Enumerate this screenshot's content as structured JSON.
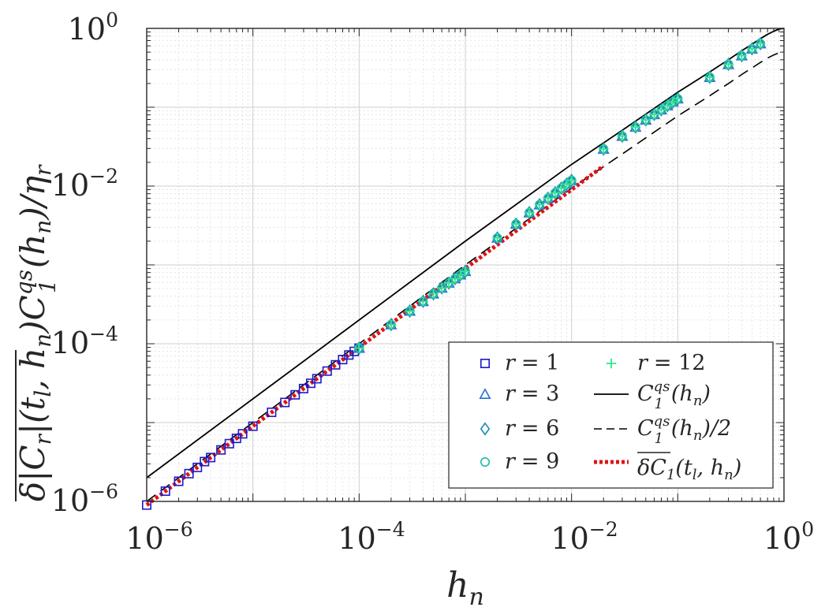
{
  "chart_data": {
    "type": "scatter",
    "xscale": "log",
    "yscale": "log",
    "xlim": [
      1e-06,
      1
    ],
    "ylim": [
      1e-06,
      1
    ],
    "grid": true,
    "xlabel": {
      "base": "h",
      "sub": "n"
    },
    "ylabel": "δ|C_r|(t_l, h_n) C_1^{qs}(h_n) / η_r (overlined)",
    "xticks": [
      {
        "value": 1e-06,
        "base": "10",
        "exp": "−6"
      },
      {
        "value": 0.0001,
        "base": "10",
        "exp": "−4"
      },
      {
        "value": 0.01,
        "base": "10",
        "exp": "−2"
      },
      {
        "value": 1,
        "base": "10",
        "exp": "0"
      }
    ],
    "yticks": [
      {
        "value": 1e-06,
        "base": "10",
        "exp": "−6"
      },
      {
        "value": 0.0001,
        "base": "10",
        "exp": "−4"
      },
      {
        "value": 0.01,
        "base": "10",
        "exp": "−2"
      },
      {
        "value": 1,
        "base": "10",
        "exp": "0"
      }
    ],
    "series": [
      {
        "name": "r = 1",
        "marker": "square",
        "color": "#1a1ac8",
        "x": [
          1e-06,
          1.5e-06,
          2e-06,
          2.5e-06,
          3e-06,
          3.5e-06,
          4e-06,
          5e-06,
          6e-06,
          7e-06,
          8e-06,
          1e-05,
          1.5e-05,
          2e-05,
          2.5e-05,
          3e-05,
          3.5e-05,
          4e-05,
          5e-05,
          6e-05,
          7e-05,
          8e-05,
          9e-05,
          0.0001
        ],
        "y": [
          9e-07,
          1.35e-06,
          1.8e-06,
          2.25e-06,
          2.7e-06,
          3.2e-06,
          3.6e-06,
          4.5e-06,
          5.4e-06,
          6.3e-06,
          7.2e-06,
          9e-06,
          1.35e-05,
          1.8e-05,
          2.25e-05,
          2.7e-05,
          3.15e-05,
          3.6e-05,
          4.5e-05,
          5.4e-05,
          6.3e-05,
          7.2e-05,
          8e-05,
          8.8e-05
        ]
      },
      {
        "name": "r = 3",
        "marker": "triangle",
        "color": "#2a6fd0",
        "x": [
          0.0001,
          0.0002,
          0.0003,
          0.0004,
          0.0005,
          0.0006,
          0.0007,
          0.0008,
          0.0009,
          0.001,
          0.002,
          0.003,
          0.004,
          0.005,
          0.006,
          0.007,
          0.008,
          0.009,
          0.01,
          0.02,
          0.03,
          0.04,
          0.05,
          0.06,
          0.07,
          0.08,
          0.09,
          0.1,
          0.2,
          0.3,
          0.4,
          0.5,
          0.6
        ],
        "y": [
          8.8e-05,
          0.000175,
          0.00026,
          0.000345,
          0.00043,
          0.00051,
          0.00059,
          0.00067,
          0.00075,
          0.00083,
          0.0022,
          0.0033,
          0.0046,
          0.0058,
          0.007,
          0.0082,
          0.0094,
          0.0106,
          0.0118,
          0.0295,
          0.043,
          0.056,
          0.069,
          0.081,
          0.093,
          0.105,
          0.117,
          0.128,
          0.24,
          0.35,
          0.45,
          0.55,
          0.64
        ]
      },
      {
        "name": "r = 6",
        "marker": "diamond",
        "color": "#1a8ab0",
        "x": [
          0.0001,
          0.0002,
          0.0003,
          0.0004,
          0.0005,
          0.0006,
          0.0007,
          0.0008,
          0.0009,
          0.001,
          0.002,
          0.003,
          0.004,
          0.005,
          0.006,
          0.007,
          0.008,
          0.009,
          0.01,
          0.02,
          0.03,
          0.04,
          0.05,
          0.06,
          0.07,
          0.08,
          0.09,
          0.1,
          0.2,
          0.3,
          0.4,
          0.5,
          0.6
        ],
        "y": [
          8.8e-05,
          0.000175,
          0.00026,
          0.000345,
          0.00043,
          0.00051,
          0.00059,
          0.00067,
          0.00075,
          0.00083,
          0.0022,
          0.0033,
          0.0046,
          0.0058,
          0.007,
          0.0082,
          0.0094,
          0.0106,
          0.0118,
          0.0295,
          0.043,
          0.056,
          0.069,
          0.081,
          0.093,
          0.105,
          0.117,
          0.128,
          0.24,
          0.35,
          0.45,
          0.55,
          0.64
        ]
      },
      {
        "name": "r = 9",
        "marker": "circle",
        "color": "#22b8a8",
        "x": [
          0.0001,
          0.0002,
          0.0003,
          0.0004,
          0.0005,
          0.0006,
          0.0007,
          0.0008,
          0.0009,
          0.001,
          0.002,
          0.003,
          0.004,
          0.005,
          0.006,
          0.007,
          0.008,
          0.009,
          0.01,
          0.02,
          0.03,
          0.04,
          0.05,
          0.06,
          0.07,
          0.08,
          0.09,
          0.1,
          0.2,
          0.3,
          0.4,
          0.5,
          0.6
        ],
        "y": [
          8.8e-05,
          0.000175,
          0.00026,
          0.000345,
          0.00043,
          0.00051,
          0.00059,
          0.00067,
          0.00075,
          0.00083,
          0.0022,
          0.0033,
          0.0046,
          0.0058,
          0.007,
          0.0082,
          0.0094,
          0.0106,
          0.0118,
          0.0295,
          0.043,
          0.056,
          0.069,
          0.081,
          0.093,
          0.105,
          0.117,
          0.128,
          0.24,
          0.35,
          0.45,
          0.55,
          0.64
        ]
      },
      {
        "name": "r = 12",
        "marker": "plus",
        "color": "#2ee88a",
        "x": [
          0.0001,
          0.0002,
          0.0003,
          0.0004,
          0.0005,
          0.0006,
          0.0007,
          0.0008,
          0.0009,
          0.001,
          0.002,
          0.003,
          0.004,
          0.005,
          0.006,
          0.007,
          0.008,
          0.009,
          0.01,
          0.02,
          0.03,
          0.04,
          0.05,
          0.06,
          0.07,
          0.08,
          0.09,
          0.1,
          0.2,
          0.3,
          0.4,
          0.5,
          0.6
        ],
        "y": [
          8.8e-05,
          0.000175,
          0.00026,
          0.000345,
          0.00043,
          0.00051,
          0.00059,
          0.00067,
          0.00075,
          0.00083,
          0.0022,
          0.0033,
          0.0046,
          0.0058,
          0.007,
          0.0082,
          0.0094,
          0.0106,
          0.0118,
          0.0295,
          0.043,
          0.056,
          0.069,
          0.081,
          0.093,
          0.105,
          0.117,
          0.128,
          0.24,
          0.35,
          0.45,
          0.55,
          0.64
        ]
      }
    ],
    "curves": [
      {
        "name": "C_1^{qs}(h_n)",
        "style": "solid",
        "color": "#000000",
        "x": [
          1e-06,
          1e-05,
          0.0001,
          0.001,
          0.01,
          0.03,
          0.1,
          0.2,
          0.3,
          0.4,
          0.5,
          0.6,
          0.7,
          0.8,
          0.9,
          1.0
        ],
        "y": [
          2e-06,
          2e-05,
          0.0002,
          0.002,
          0.0188,
          0.051,
          0.155,
          0.28,
          0.4,
          0.52,
          0.63,
          0.74,
          0.84,
          0.92,
          0.98,
          1.0
        ]
      },
      {
        "name": "C_1^{qs}(h_n)/2",
        "style": "dashed",
        "color": "#000000",
        "x": [
          1e-06,
          1e-05,
          0.0001,
          0.001,
          0.01,
          0.03,
          0.1,
          0.2,
          0.3,
          0.4,
          0.5,
          0.6,
          0.7,
          0.8,
          0.9,
          1.0
        ],
        "y": [
          1e-06,
          1e-05,
          0.0001,
          0.001,
          0.0094,
          0.0255,
          0.0775,
          0.14,
          0.2,
          0.26,
          0.315,
          0.37,
          0.42,
          0.46,
          0.49,
          0.5
        ]
      },
      {
        "name": "δC_1(t_l, h_n) (overlined)",
        "style": "dotted",
        "color": "#e01414",
        "x": [
          1e-06,
          1e-05,
          0.0001,
          0.001,
          0.003,
          0.005,
          0.01,
          0.02
        ],
        "y": [
          9e-07,
          9e-06,
          9e-05,
          0.0009,
          0.0027,
          0.0045,
          0.009,
          0.018
        ]
      }
    ],
    "legend": {
      "placement": "bottom-right",
      "columns": 2,
      "entries": [
        {
          "label": "r = 1",
          "sym": "r",
          "rhs": "= 1",
          "marker": "square",
          "color": "#1a1ac8"
        },
        {
          "label": "r = 12",
          "sym": "r",
          "rhs": "= 12",
          "marker": "plus",
          "color": "#2ee88a"
        },
        {
          "label": "r = 3",
          "sym": "r",
          "rhs": "= 3",
          "marker": "triangle",
          "color": "#2a6fd0"
        },
        {
          "label": "C_1^{qs}(h_n)",
          "marker": "line-solid",
          "color": "#000000"
        },
        {
          "label": "r = 6",
          "sym": "r",
          "rhs": "= 6",
          "marker": "diamond",
          "color": "#1a8ab0"
        },
        {
          "label": "C_1^{qs}(h_n)/2",
          "marker": "line-dashed",
          "color": "#000000"
        },
        {
          "label": "r = 9",
          "sym": "r",
          "rhs": "= 9",
          "marker": "circle",
          "color": "#22b8a8"
        },
        {
          "label": "δC_1(t_l, h_n) (overlined)",
          "marker": "line-dotted",
          "color": "#e01414"
        }
      ]
    }
  }
}
